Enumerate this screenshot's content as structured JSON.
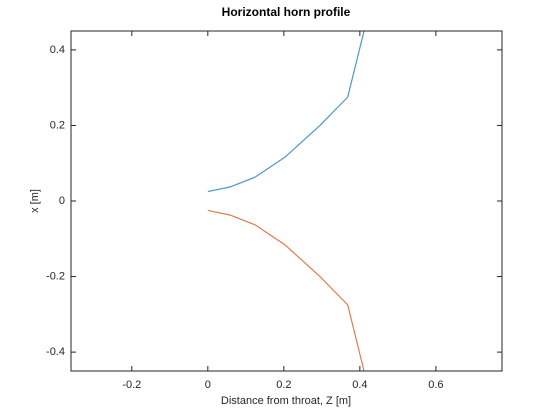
{
  "chart_data": {
    "type": "line",
    "title": "Horizontal horn profile",
    "x_label": "Distance from throat, Z [m]",
    "y_label": "x [m]",
    "xlim": [
      -0.36,
      0.774
    ],
    "ylim": [
      -0.45,
      0.45
    ],
    "xticks": [
      -0.2,
      0,
      0.2,
      0.4,
      0.6
    ],
    "yticks": [
      -0.4,
      -0.2,
      0,
      0.2,
      0.4
    ],
    "series": [
      {
        "color": "#4a98c9",
        "x": [
          0,
          0.058,
          0.124,
          0.203,
          0.295,
          0.368,
          0.411
        ],
        "values": [
          0.025,
          0.037,
          0.063,
          0.116,
          0.2,
          0.275,
          0.45
        ]
      },
      {
        "color": "#e07b50",
        "x": [
          0,
          0.058,
          0.124,
          0.203,
          0.295,
          0.368,
          0.411
        ],
        "values": [
          -0.025,
          -0.037,
          -0.063,
          -0.116,
          -0.2,
          -0.275,
          -0.45
        ]
      }
    ]
  }
}
